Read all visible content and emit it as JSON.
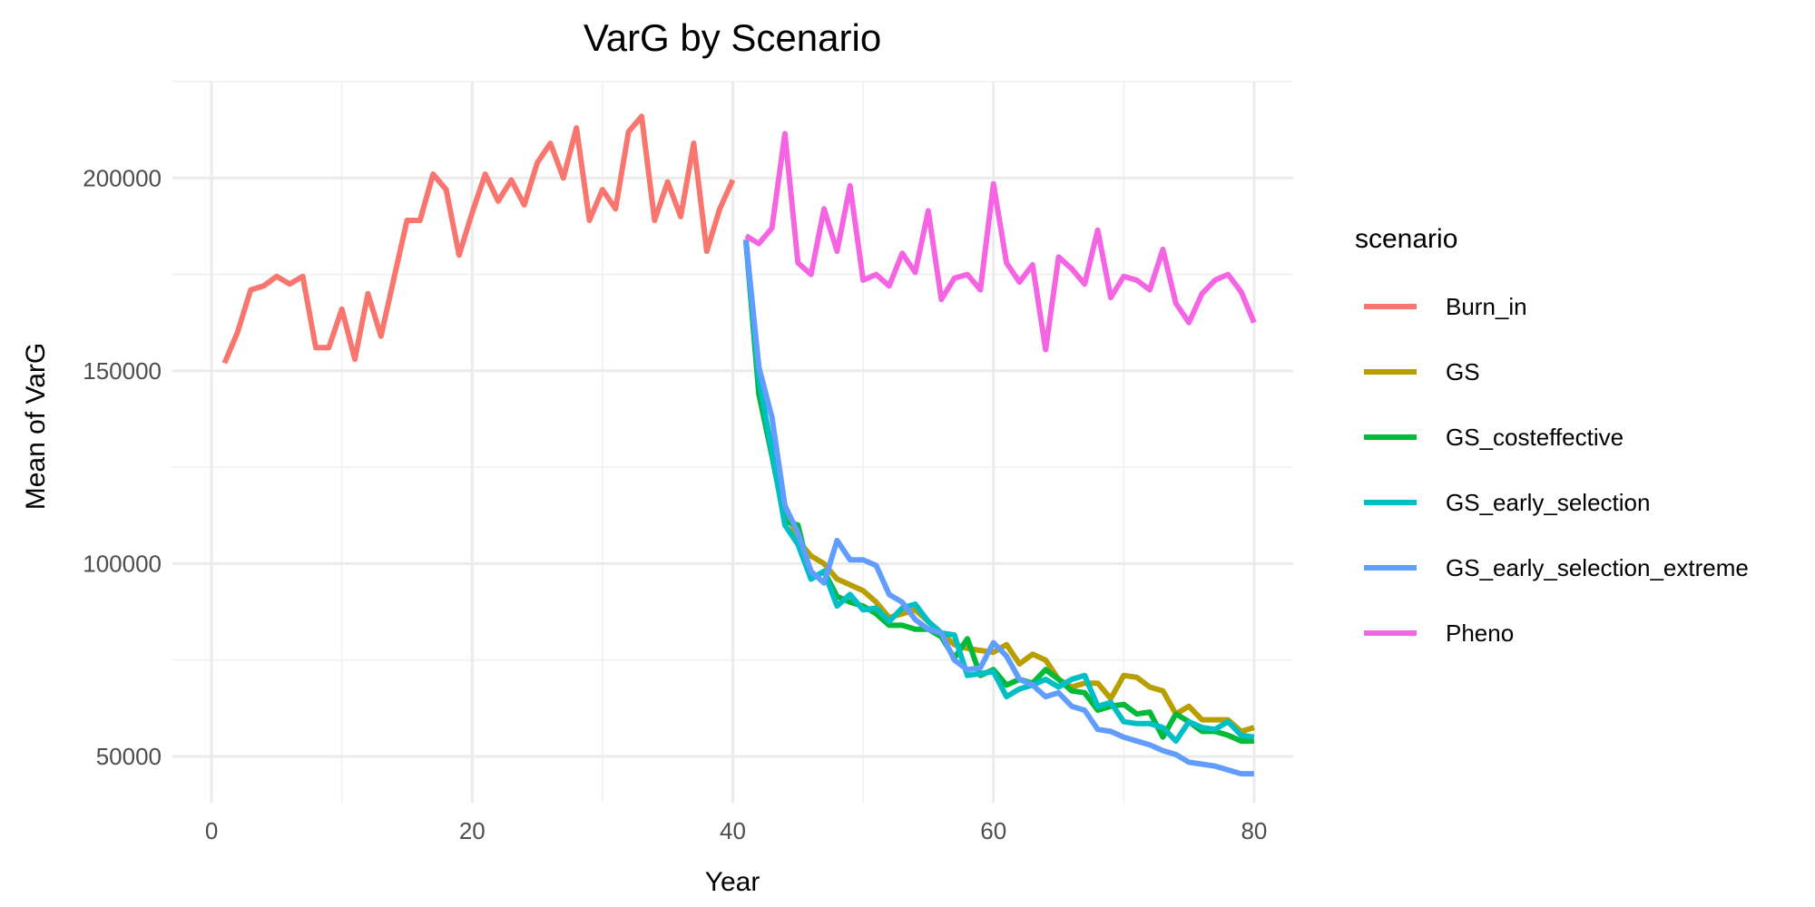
{
  "chart_data": {
    "type": "line",
    "title": "VarG by Scenario",
    "xlabel": "Year",
    "ylabel": "Mean of VarG",
    "xlim": [
      -3,
      83
    ],
    "ylim": [
      38000,
      225000
    ],
    "x_ticks": [
      0,
      20,
      40,
      60,
      80
    ],
    "y_ticks": [
      50000,
      100000,
      150000,
      200000
    ],
    "grid": true,
    "legend": {
      "title": "scenario",
      "position": "right"
    },
    "series": [
      {
        "name": "Burn_in",
        "color": "#F8766D",
        "x": [
          1,
          2,
          3,
          4,
          5,
          6,
          7,
          8,
          9,
          10,
          11,
          12,
          13,
          14,
          15,
          16,
          17,
          18,
          19,
          20,
          21,
          22,
          23,
          24,
          25,
          26,
          27,
          28,
          29,
          30,
          31,
          32,
          33,
          34,
          35,
          36,
          37,
          38,
          39,
          40
        ],
        "values": [
          152000,
          160000,
          171000,
          172000,
          174500,
          172500,
          174500,
          156000,
          156000,
          166000,
          153000,
          170000,
          159000,
          174000,
          189000,
          189000,
          201000,
          197000,
          180000,
          191000,
          201000,
          194000,
          199500,
          193000,
          204000,
          209000,
          200000,
          213000,
          189000,
          197000,
          192000,
          212000,
          216000,
          189000,
          199000,
          190000,
          209000,
          181000,
          192000,
          199500
        ]
      },
      {
        "name": "GS",
        "color": "#B79F00",
        "x": [
          41,
          42,
          43,
          44,
          45,
          46,
          47,
          48,
          49,
          50,
          51,
          52,
          53,
          54,
          55,
          56,
          57,
          58,
          59,
          60,
          61,
          62,
          63,
          64,
          65,
          66,
          67,
          68,
          69,
          70,
          71,
          72,
          73,
          74,
          75,
          76,
          77,
          78,
          79,
          80
        ],
        "values": [
          184000,
          146000,
          130000,
          115000,
          106000,
          102000,
          100000,
          96000,
          94500,
          93000,
          90000,
          86000,
          87000,
          88000,
          85000,
          82000,
          79000,
          78000,
          77500,
          77000,
          79000,
          74000,
          76500,
          75000,
          70000,
          68000,
          69000,
          69000,
          65000,
          71000,
          70500,
          68000,
          67000,
          61000,
          63000,
          59500,
          59500,
          59500,
          56500,
          57500
        ]
      },
      {
        "name": "GS_costeffective",
        "color": "#00BA38",
        "x": [
          41,
          42,
          43,
          44,
          45,
          46,
          47,
          48,
          49,
          50,
          51,
          52,
          53,
          54,
          55,
          56,
          57,
          58,
          59,
          60,
          61,
          62,
          63,
          64,
          65,
          66,
          67,
          68,
          69,
          70,
          71,
          72,
          73,
          74,
          75,
          76,
          77,
          78,
          79,
          80
        ],
        "values": [
          184000,
          144000,
          128000,
          111000,
          110000,
          96000,
          98000,
          91500,
          90000,
          89000,
          87000,
          84000,
          84000,
          83000,
          83000,
          81000,
          75500,
          80500,
          71000,
          72500,
          68500,
          70000,
          69000,
          72500,
          70000,
          67000,
          66500,
          62000,
          63000,
          63500,
          61000,
          61500,
          55000,
          61000,
          59000,
          56500,
          56500,
          55500,
          54000,
          54000
        ]
      },
      {
        "name": "GS_early_selection",
        "color": "#00BFC4",
        "x": [
          41,
          42,
          43,
          44,
          45,
          46,
          47,
          48,
          49,
          50,
          51,
          52,
          53,
          54,
          55,
          56,
          57,
          58,
          59,
          60,
          61,
          62,
          63,
          64,
          65,
          66,
          67,
          68,
          69,
          70,
          71,
          72,
          73,
          74,
          75,
          76,
          77,
          78,
          79,
          80
        ],
        "values": [
          184000,
          148000,
          129000,
          110000,
          105000,
          96000,
          98000,
          89000,
          92000,
          88000,
          88500,
          85000,
          88500,
          89500,
          85000,
          82000,
          81500,
          71000,
          71500,
          72000,
          65500,
          67500,
          68500,
          70000,
          68000,
          70000,
          71000,
          63000,
          64000,
          59000,
          58500,
          58500,
          57500,
          54000,
          59000,
          57500,
          57000,
          59000,
          55500,
          55000
        ]
      },
      {
        "name": "GS_early_selection_extreme",
        "color": "#619CFF",
        "x": [
          41,
          42,
          43,
          44,
          45,
          46,
          47,
          48,
          49,
          50,
          51,
          52,
          53,
          54,
          55,
          56,
          57,
          58,
          59,
          60,
          61,
          62,
          63,
          64,
          65,
          66,
          67,
          68,
          69,
          70,
          71,
          72,
          73,
          74,
          75,
          76,
          77,
          78,
          79,
          80
        ],
        "values": [
          184000,
          151000,
          138000,
          115000,
          108000,
          98000,
          95000,
          106000,
          101000,
          101000,
          99500,
          92000,
          90000,
          85500,
          83000,
          82000,
          75000,
          72500,
          73000,
          79500,
          76000,
          70000,
          68500,
          65500,
          66500,
          63000,
          62000,
          57000,
          56500,
          55000,
          54000,
          53000,
          51500,
          50500,
          48500,
          48000,
          47500,
          46500,
          45500,
          45500
        ]
      },
      {
        "name": "Pheno",
        "color": "#F564E3",
        "x": [
          41,
          42,
          43,
          44,
          45,
          46,
          47,
          48,
          49,
          50,
          51,
          52,
          53,
          54,
          55,
          56,
          57,
          58,
          59,
          60,
          61,
          62,
          63,
          64,
          65,
          66,
          67,
          68,
          69,
          70,
          71,
          72,
          73,
          74,
          75,
          76,
          77,
          78,
          79,
          80
        ],
        "values": [
          185000,
          183000,
          187000,
          211500,
          178000,
          175000,
          192000,
          181000,
          198000,
          173500,
          175000,
          172000,
          180500,
          175500,
          191500,
          168500,
          174000,
          175000,
          171000,
          198500,
          178000,
          173000,
          177500,
          155500,
          179500,
          176500,
          172500,
          186500,
          169000,
          174500,
          173500,
          171000,
          181500,
          167500,
          162500,
          170000,
          173500,
          175000,
          170500,
          162500
        ]
      }
    ]
  }
}
